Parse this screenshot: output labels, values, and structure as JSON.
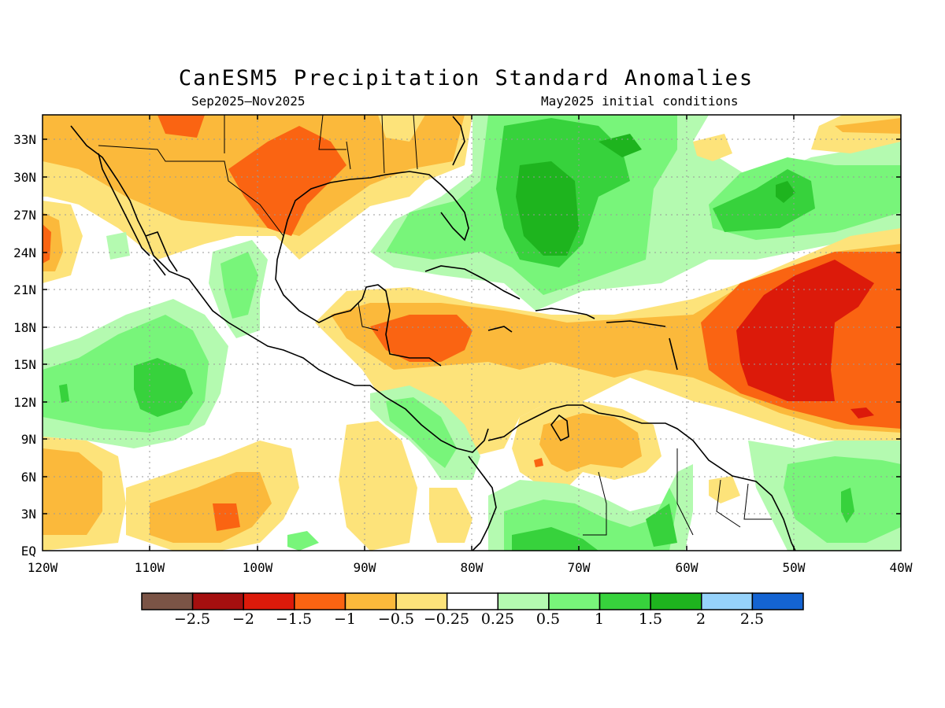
{
  "title": "CanESM5 Precipitation Standard Anomalies",
  "subtitle_left": "Sep2025–Nov2025",
  "subtitle_right": "May2025 initial conditions",
  "lat_labels": [
    "33N",
    "30N",
    "27N",
    "24N",
    "21N",
    "18N",
    "15N",
    "12N",
    "9N",
    "6N",
    "3N",
    "EQ"
  ],
  "lon_labels": [
    "120W",
    "110W",
    "100W",
    "90W",
    "80W",
    "70W",
    "60W",
    "50W",
    "40W"
  ],
  "colorbar": {
    "colors": [
      "#7b5446",
      "#a50f0f",
      "#dc1a0a",
      "#fa6412",
      "#fbb93b",
      "#fde37a",
      "#ffffff",
      "#b4fab0",
      "#78f57a",
      "#37d23c",
      "#1eb41e",
      "#96d2fa",
      "#1464d2"
    ],
    "labels": [
      "−2.5",
      "−2",
      "−1.5",
      "−1",
      "−0.5",
      "−0.25",
      "0.25",
      "0.5",
      "1",
      "1.5",
      "2",
      "2.5"
    ]
  },
  "map_extent": {
    "lon": [
      -120,
      -40
    ],
    "lat": [
      0,
      35
    ]
  }
}
